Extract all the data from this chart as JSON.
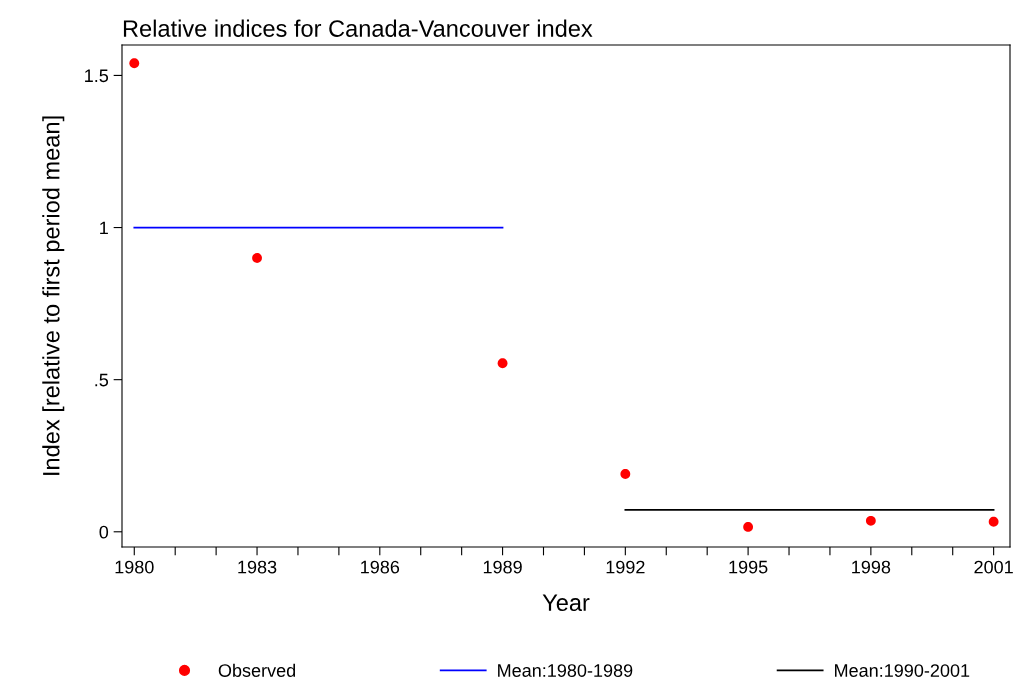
{
  "chart_data": {
    "type": "scatter",
    "title": "Relative indices for Canada-Vancouver index",
    "xlabel": "Year",
    "ylabel": "Index [relative to first period mean]",
    "x": [
      1980,
      1983,
      1989,
      1992,
      1995,
      1998,
      2001
    ],
    "series": [
      {
        "name": "Observed",
        "color": "#ff0000",
        "marker": "circle",
        "values": [
          1.54,
          0.9,
          0.554,
          0.19,
          0.016,
          0.036,
          0.033
        ]
      },
      {
        "name": "Mean:1980-1989",
        "type": "line",
        "color": "#0000ff",
        "x": [
          1980,
          1989
        ],
        "values": [
          1.0,
          1.0
        ]
      },
      {
        "name": "Mean:1990-2001",
        "type": "line",
        "color": "#000000",
        "x": [
          1992,
          2001
        ],
        "values": [
          0.072,
          0.072
        ]
      }
    ],
    "xlim": [
      1979.7,
      2001.4
    ],
    "ylim": [
      -0.05,
      1.6
    ],
    "xticks": [
      1980,
      {
        "value": 1981,
        "label": null
      },
      {
        "value": 1982,
        "label": null
      },
      1983,
      {
        "value": 1984,
        "label": null
      },
      {
        "value": 1985,
        "label": null
      },
      1986,
      {
        "value": 1987,
        "label": null
      },
      {
        "value": 1988,
        "label": null
      },
      1989,
      {
        "value": 1990,
        "label": null
      },
      {
        "value": 1991,
        "label": null
      },
      1992,
      {
        "value": 1993,
        "label": null
      },
      {
        "value": 1994,
        "label": null
      },
      1995,
      {
        "value": 1996,
        "label": null
      },
      {
        "value": 1997,
        "label": null
      },
      1998,
      {
        "value": 1999,
        "label": null
      },
      {
        "value": 2000,
        "label": null
      },
      2001
    ],
    "yticks": [
      0,
      {
        "value": 0.5,
        "label": ".5"
      },
      1,
      1.5
    ],
    "grid": false,
    "legend": "bottom"
  }
}
